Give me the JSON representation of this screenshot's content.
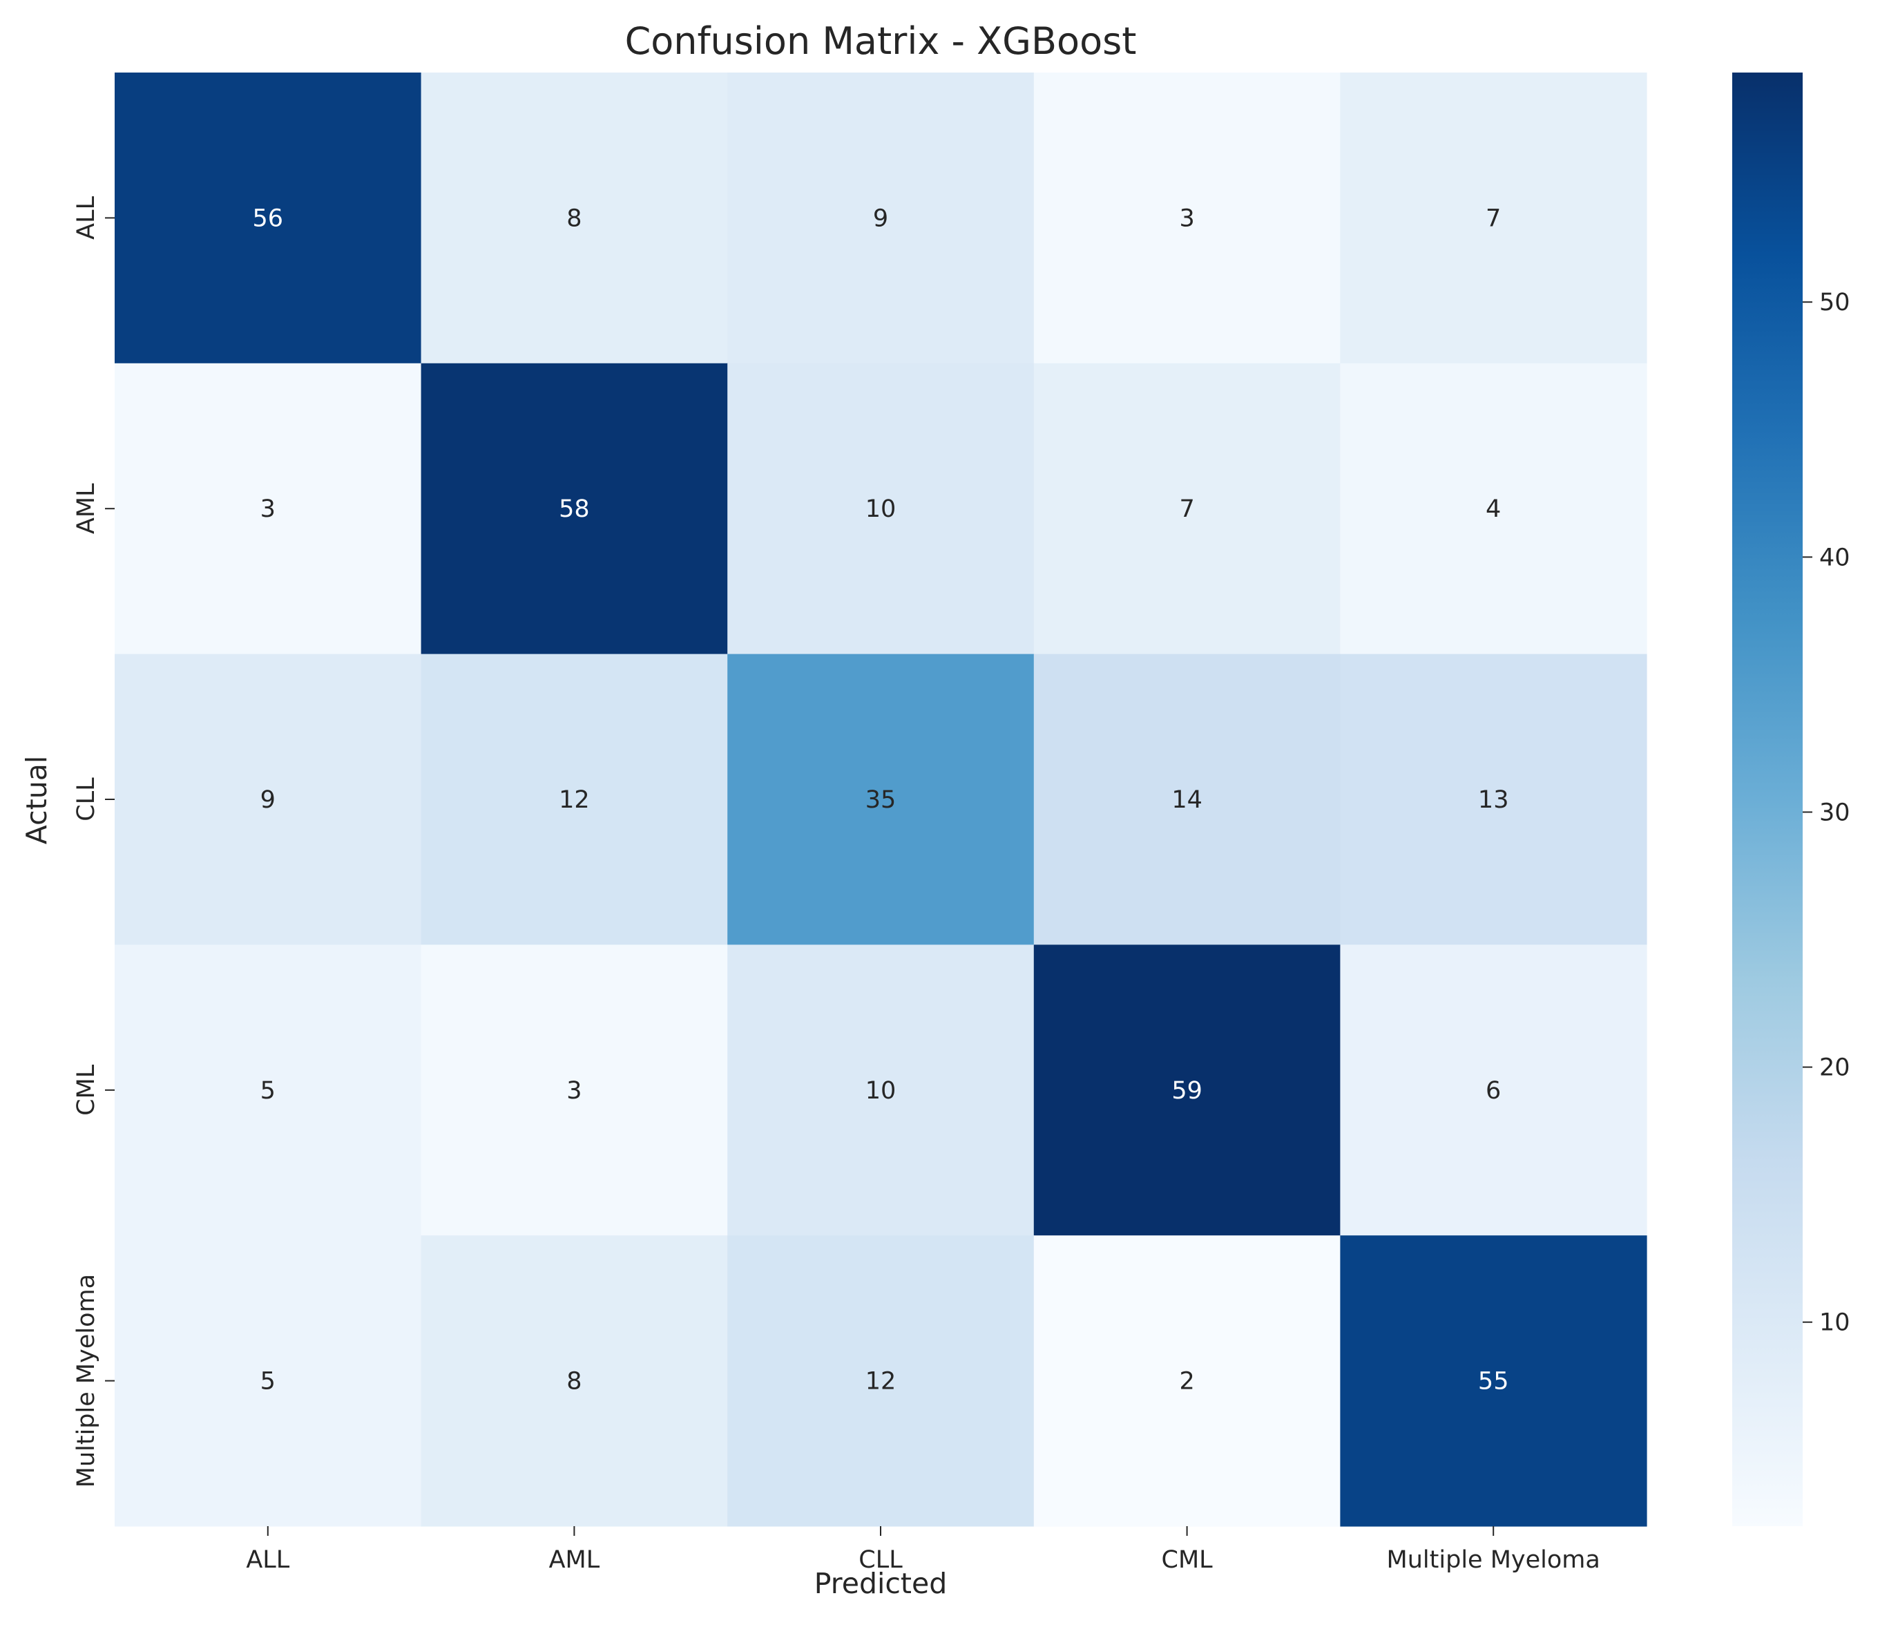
{
  "chart_data": {
    "type": "heatmap",
    "title": "Confusion Matrix - XGBoost",
    "xlabel": "Predicted",
    "ylabel": "Actual",
    "x_categories": [
      "ALL",
      "AML",
      "CLL",
      "CML",
      "Multiple Myeloma"
    ],
    "y_categories": [
      "ALL",
      "AML",
      "CLL",
      "CML",
      "Multiple Myeloma"
    ],
    "values": [
      [
        56,
        8,
        9,
        3,
        7
      ],
      [
        3,
        58,
        10,
        7,
        4
      ],
      [
        9,
        12,
        35,
        14,
        13
      ],
      [
        5,
        3,
        10,
        59,
        6
      ],
      [
        5,
        8,
        12,
        2,
        55
      ]
    ],
    "colormap": "Blues",
    "colorbar": {
      "range": [
        2,
        59
      ],
      "ticks": [
        10,
        20,
        30,
        40,
        50
      ]
    },
    "annotations": true
  }
}
